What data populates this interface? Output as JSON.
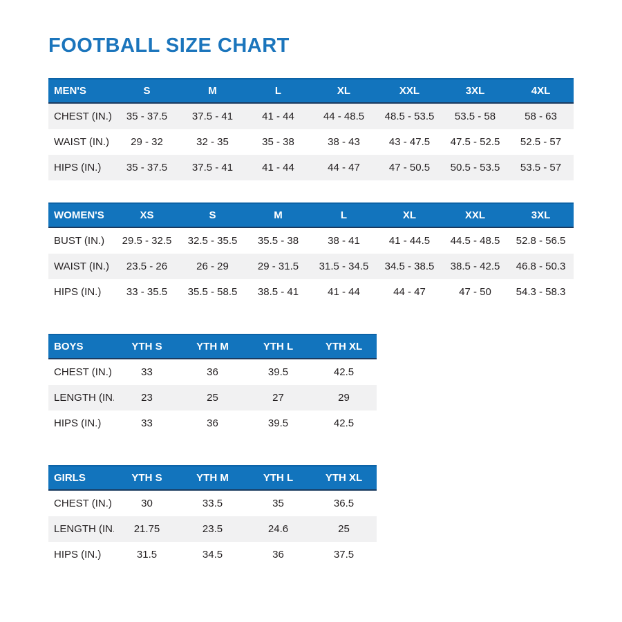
{
  "title": "FOOTBALL SIZE CHART",
  "colors": {
    "title_blue": "#1b75bc",
    "header_blue": "#1274bd",
    "header_text": "#ffffff",
    "header_border_top": "#0c63a7",
    "header_border_bottom": "#1a3a5f",
    "row_alt": "#f1f1f2",
    "text": "#231f20"
  },
  "chart_data": [
    {
      "type": "table",
      "name": "mens-size-table",
      "columns": [
        "MEN'S",
        "S",
        "M",
        "L",
        "XL",
        "XXL",
        "3XL",
        "4XL"
      ],
      "rows": [
        [
          "CHEST (IN.)",
          "35 - 37.5",
          "37.5 - 41",
          "41 - 44",
          "44 - 48.5",
          "48.5 - 53.5",
          "53.5 - 58",
          "58 - 63"
        ],
        [
          "WAIST (IN.)",
          "29 - 32",
          "32 - 35",
          "35 - 38",
          "38 - 43",
          "43 - 47.5",
          "47.5 - 52.5",
          "52.5 - 57"
        ],
        [
          "HIPS (IN.)",
          "35 - 37.5",
          "37.5 - 41",
          "41 - 44",
          "44 - 47",
          "47 - 50.5",
          "50.5 - 53.5",
          "53.5 - 57"
        ]
      ]
    },
    {
      "type": "table",
      "name": "womens-size-table",
      "columns": [
        "WOMEN'S",
        "XS",
        "S",
        "M",
        "L",
        "XL",
        "XXL",
        "3XL"
      ],
      "rows": [
        [
          "BUST (IN.)",
          "29.5 - 32.5",
          "32.5 - 35.5",
          "35.5 - 38",
          "38 - 41",
          "41 - 44.5",
          "44.5 - 48.5",
          "52.8 - 56.5"
        ],
        [
          "WAIST (IN.)",
          "23.5 - 26",
          "26 - 29",
          "29 - 31.5",
          "31.5 - 34.5",
          "34.5 - 38.5",
          "38.5 - 42.5",
          "46.8 - 50.3"
        ],
        [
          "HIPS (IN.)",
          "33 - 35.5",
          "35.5 - 58.5",
          "38.5 - 41",
          "41 - 44",
          "44 - 47",
          "47 - 50",
          "54.3 - 58.3"
        ]
      ]
    },
    {
      "type": "table",
      "name": "boys-size-table",
      "columns": [
        "BOYS",
        "YTH S",
        "YTH M",
        "YTH L",
        "YTH XL"
      ],
      "rows": [
        [
          "CHEST (IN.)",
          "33",
          "36",
          "39.5",
          "42.5"
        ],
        [
          "LENGTH (IN.)",
          "23",
          "25",
          "27",
          "29"
        ],
        [
          "HIPS (IN.)",
          "33",
          "36",
          "39.5",
          "42.5"
        ]
      ]
    },
    {
      "type": "table",
      "name": "girls-size-table",
      "columns": [
        "GIRLS",
        "YTH S",
        "YTH M",
        "YTH L",
        "YTH XL"
      ],
      "rows": [
        [
          "CHEST (IN.)",
          "30",
          "33.5",
          "35",
          "36.5"
        ],
        [
          "LENGTH (IN.)",
          "21.75",
          "23.5",
          "24.6",
          "25"
        ],
        [
          "HIPS (IN.)",
          "31.5",
          "34.5",
          "36",
          "37.5"
        ]
      ]
    }
  ]
}
